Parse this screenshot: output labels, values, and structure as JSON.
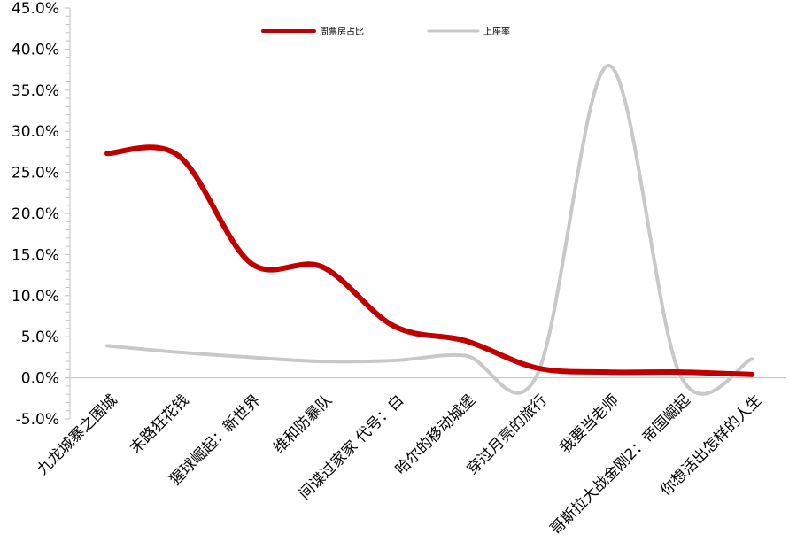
{
  "chart_data": {
    "type": "line",
    "categories": [
      "九龙城寨之围城",
      "末路狂花钱",
      "猩球崛起：新世界",
      "维和防暴队",
      "间谍过家家 代号：白",
      "哈尔的移动城堡",
      "穿过月亮的旅行",
      "我要当老师",
      "哥斯拉大战金刚2：帝国崛起",
      "你想活出怎样的人生"
    ],
    "series": [
      {
        "name": "周票房占比",
        "color": "#C00000",
        "values": [
          27.3,
          27.0,
          14.0,
          13.5,
          6.3,
          4.5,
          1.2,
          0.7,
          0.7,
          0.4
        ]
      },
      {
        "name": "上座率",
        "color": "#C8C8C8",
        "values": [
          3.9,
          3.1,
          2.5,
          2.0,
          2.1,
          2.7,
          0.3,
          38.0,
          0.3,
          2.3
        ]
      }
    ],
    "ylim": [
      -5,
      45
    ],
    "y_ticks": [
      "-5.0%",
      "0.0%",
      "5.0%",
      "10.0%",
      "15.0%",
      "20.0%",
      "25.0%",
      "30.0%",
      "35.0%",
      "40.0%",
      "45.0%"
    ],
    "y_tick_values": [
      -5,
      0,
      5,
      10,
      15,
      20,
      25,
      30,
      35,
      40,
      45
    ],
    "legend_position": "top-center",
    "grid": false,
    "smooth": true
  }
}
